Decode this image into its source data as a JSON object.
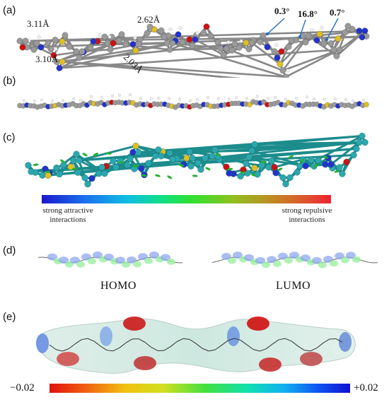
{
  "panels": {
    "a": {
      "label": "(a)",
      "distances": [
        "3.11Å",
        "3.10Å",
        "2.62Å",
        "2.03Å"
      ],
      "angles": [
        "0.3°",
        "16.8°",
        "0.7°"
      ]
    },
    "b": {
      "label": "(b)"
    },
    "c": {
      "label": "(c)",
      "scale_left": "strong attractive interactions",
      "scale_right": "strong repulsive interactions"
    },
    "d": {
      "label": "(d)",
      "homo": "HOMO",
      "lumo": "LUMO"
    },
    "e": {
      "label": "(e)",
      "scale_min": "−0.02",
      "scale_max": "+0.02"
    }
  },
  "colors": {
    "carbon": "#9a9a9a",
    "nitrogen": "#2233cc",
    "sulfur": "#e0c020",
    "oxygen": "#d01010",
    "hydrogen": "#f0f0f0",
    "nci_green": "#22b030",
    "homo_lobe_blue": "#8fa8f0",
    "homo_lobe_green": "#9af0a0"
  }
}
